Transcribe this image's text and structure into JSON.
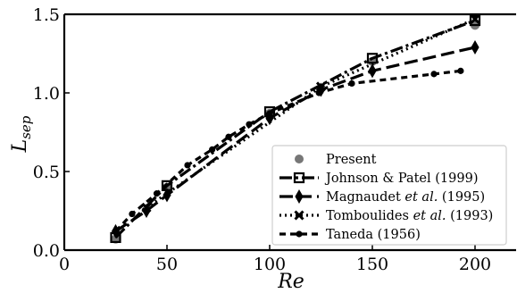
{
  "chart_data": {
    "type": "line",
    "xlabel": "Re",
    "ylabel_main": "L",
    "ylabel_sub": "sep",
    "xlim": [
      0,
      220
    ],
    "ylim": [
      0,
      1.5
    ],
    "xticks": [
      0,
      50,
      100,
      150,
      200
    ],
    "xtick_labels": [
      "0",
      "50",
      "100",
      "150",
      "200"
    ],
    "yticks": [
      0,
      0.5,
      1.0,
      1.5
    ],
    "ytick_labels": [
      "0.0",
      "0.5",
      "1.0",
      "1.5"
    ],
    "grid": false,
    "legend_position": "bottom-right",
    "series": [
      {
        "name": "Present",
        "style": "points",
        "marker": "circle",
        "color": "#777777",
        "x": [
          25,
          50,
          100,
          150,
          200
        ],
        "y": [
          0.07,
          0.4,
          0.87,
          1.2,
          1.43
        ]
      },
      {
        "name": "Johnson & Patel (1999)",
        "style": "dashdot",
        "marker": "square",
        "color": "#000000",
        "x": [
          25,
          50,
          100,
          150,
          200
        ],
        "y": [
          0.08,
          0.41,
          0.88,
          1.22,
          1.46
        ]
      },
      {
        "name": "Magnaudet et al. (1995)",
        "name_prefix": "Magnaudet ",
        "name_italic": "et al.",
        "name_suffix": " (1995)",
        "style": "longdash",
        "marker": "diamond",
        "color": "#000000",
        "x": [
          25,
          40,
          50,
          100,
          125,
          150,
          200
        ],
        "y": [
          0.12,
          0.25,
          0.35,
          0.84,
          1.02,
          1.14,
          1.29
        ]
      },
      {
        "name": "Tomboulides et al. (1993)",
        "name_prefix": "Tomboulides ",
        "name_italic": "et al.",
        "name_suffix": " (1993)",
        "style": "dotted",
        "marker": "x",
        "color": "#000000",
        "x": [
          40,
          125,
          200
        ],
        "y": [
          0.27,
          1.04,
          1.47
        ]
      },
      {
        "name": "Taneda (1956)",
        "style": "dashed",
        "marker": "dot",
        "color": "#000000",
        "x": [
          25,
          33,
          45,
          60,
          72,
          80,
          90,
          100,
          124,
          140,
          180,
          193
        ],
        "y": [
          0.12,
          0.23,
          0.36,
          0.54,
          0.64,
          0.72,
          0.8,
          0.87,
          1.0,
          1.06,
          1.12,
          1.14
        ]
      }
    ]
  }
}
